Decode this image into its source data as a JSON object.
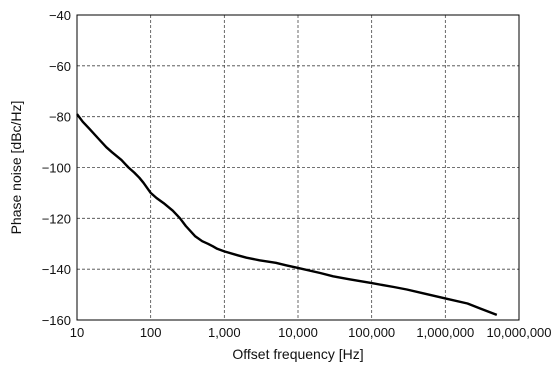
{
  "chart_data": {
    "type": "line",
    "title": "",
    "xlabel": "Offset frequency [Hz]",
    "ylabel": "Phase noise [dBc/Hz]",
    "xscale": "log",
    "xlim": [
      10,
      10000000
    ],
    "ylim": [
      -160,
      -40
    ],
    "grid": true,
    "grid_style": "dashed",
    "line_color": "#000000",
    "x_ticks": [
      {
        "value": 10,
        "label": "10"
      },
      {
        "value": 100,
        "label": "100"
      },
      {
        "value": 1000,
        "label": "1,000"
      },
      {
        "value": 10000,
        "label": "10,000"
      },
      {
        "value": 100000,
        "label": "100,000"
      },
      {
        "value": 1000000,
        "label": "1,000,000"
      },
      {
        "value": 10000000,
        "label": "10,000,000"
      }
    ],
    "y_ticks": [
      {
        "value": -40,
        "label": "−40"
      },
      {
        "value": -60,
        "label": "−60"
      },
      {
        "value": -80,
        "label": "−80"
      },
      {
        "value": -100,
        "label": "−100"
      },
      {
        "value": -120,
        "label": "−120"
      },
      {
        "value": -140,
        "label": "−140"
      },
      {
        "value": -160,
        "label": "−160"
      }
    ],
    "series": [
      {
        "x": [
          10,
          12,
          15,
          20,
          25,
          30,
          40,
          50,
          60,
          70,
          80,
          100,
          120,
          150,
          200,
          250,
          300,
          400,
          500,
          600,
          700,
          800,
          1000,
          1500,
          2000,
          3000,
          5000,
          7000,
          10000,
          20000,
          30000,
          50000,
          100000,
          200000,
          300000,
          500000,
          1000000,
          2000000,
          3000000,
          5000000
        ],
        "y": [
          -79,
          -82,
          -85,
          -89,
          -92,
          -94,
          -97,
          -100,
          -102,
          -104,
          -106,
          -110,
          -112,
          -114,
          -117,
          -120,
          -123,
          -127,
          -129,
          -130,
          -131,
          -132,
          -133,
          -134.5,
          -135.5,
          -136.5,
          -137.5,
          -138.5,
          -139.5,
          -141.5,
          -142.8,
          -144,
          -145.5,
          -147,
          -148,
          -149.5,
          -151.5,
          -153.5,
          -155.5,
          -158
        ]
      }
    ]
  }
}
